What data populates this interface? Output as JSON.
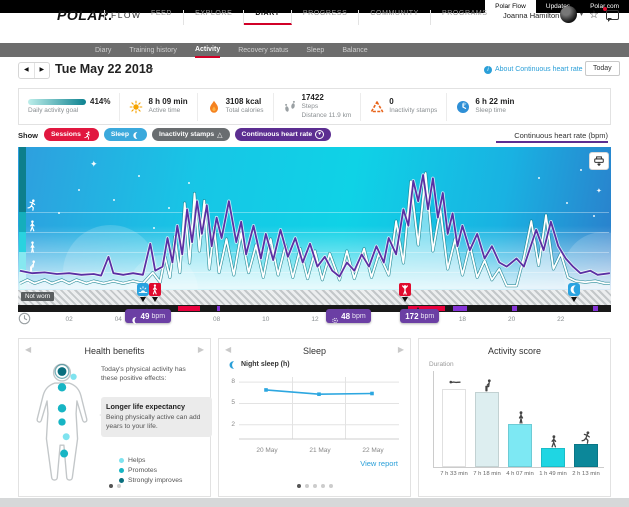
{
  "topbar": {
    "tabs": [
      {
        "label": "Polar Flow"
      },
      {
        "label": "Updates"
      },
      {
        "label": "Polar.com"
      }
    ]
  },
  "header": {
    "logo": "POLAR.",
    "flow": "FLOW",
    "nav": [
      {
        "label": "FEED"
      },
      {
        "label": "EXPLORE"
      },
      {
        "label": "DIARY"
      },
      {
        "label": "PROGRESS"
      },
      {
        "label": "COMMUNITY"
      },
      {
        "label": "PROGRAMS"
      }
    ],
    "user": {
      "name": "Joanna Hamilton"
    }
  },
  "subnav": {
    "items": [
      {
        "label": "Diary"
      },
      {
        "label": "Training history"
      },
      {
        "label": "Activity"
      },
      {
        "label": "Recovery status"
      },
      {
        "label": "Sleep"
      },
      {
        "label": "Balance"
      }
    ]
  },
  "daterow": {
    "date": "Tue May 22 2018",
    "about": "About Continuous heart rate",
    "today": "Today"
  },
  "stats": {
    "goal": {
      "value": "414%",
      "label": "Daily activity goal"
    },
    "active_time": {
      "value": "8 h 09 min",
      "label": "Active time"
    },
    "calories": {
      "value": "3108 kcal",
      "label": "Total calories"
    },
    "steps": {
      "value": "17422",
      "label": "Steps",
      "distance": "Distance 11.9 km"
    },
    "inactivity": {
      "value": "0",
      "label": "Inactivity stamps"
    },
    "sleep": {
      "value": "6 h 22 min",
      "label": "Sleep time"
    }
  },
  "filters": {
    "show_label": "Show",
    "chips": [
      {
        "label": "Sessions"
      },
      {
        "label": "Sleep"
      },
      {
        "label": "Inactivity stamps"
      },
      {
        "label": "Continuous heart rate"
      }
    ],
    "axis_right": "Continuous heart rate (bpm)"
  },
  "chart": {
    "not_worn": "Not worn",
    "ticks": [
      "02",
      "04",
      "06",
      "08",
      "10",
      "12",
      "14",
      "16",
      "18",
      "20",
      "22"
    ],
    "tooltips": [
      {
        "icon": "moon",
        "value": "49",
        "unit": "bpm",
        "hour": 5.2,
        "width": 46
      },
      {
        "icon": "target",
        "value": "48",
        "unit": "bpm",
        "hour": 13.35,
        "width": 44
      },
      {
        "icon": "",
        "value": "172",
        "unit": "bpm",
        "hour": 16.2,
        "width": 36
      }
    ]
  },
  "cards": {
    "health": {
      "title": "Health benefits",
      "intro": "Today's physical activity has these positive effects:",
      "highlight_title": "Longer life expectancy",
      "highlight_body": "Being physically active can add years to your life.",
      "legend": [
        {
          "label": "Helps",
          "color": "#7fe3ef"
        },
        {
          "label": "Promotes",
          "color": "#17b5c4"
        },
        {
          "label": "Strongly improves",
          "color": "#0a6f7e"
        }
      ]
    },
    "sleep": {
      "title": "Sleep",
      "series_label": "Night sleep (h)",
      "link": "View report"
    },
    "score": {
      "title": "Activity score",
      "ylabel": "Duration"
    }
  },
  "chart_data": [
    {
      "id": "continuous_heart_rate_day",
      "type": "line",
      "title": "Continuous heart rate (bpm)",
      "x_unit": "hour_of_day",
      "x_range": [
        0,
        24
      ],
      "x_ticks": [
        "02",
        "04",
        "06",
        "08",
        "10",
        "12",
        "14",
        "16",
        "18",
        "20",
        "22"
      ],
      "annotations": {
        "sleep_min_bpm": 49,
        "day_min_bpm": 48,
        "session_max_bpm": 172,
        "not_worn_label": "Not worn"
      },
      "series": [
        {
          "name": "heart_rate_bpm",
          "color": "#5b2fa3",
          "points": [
            [
              0,
              55
            ],
            [
              0.5,
              52
            ],
            [
              1,
              53
            ],
            [
              1.5,
              51
            ],
            [
              2,
              52
            ],
            [
              2.5,
              50
            ],
            [
              3,
              51
            ],
            [
              3.3,
              49
            ],
            [
              3.6,
              72
            ],
            [
              3.8,
              52
            ],
            [
              4.2,
              50
            ],
            [
              4.6,
              52
            ],
            [
              5,
              50
            ],
            [
              5.3,
              88
            ],
            [
              5.5,
              55
            ],
            [
              5.8,
              60
            ],
            [
              6,
              95
            ],
            [
              6.2,
              65
            ],
            [
              6.4,
              110
            ],
            [
              6.6,
              75
            ],
            [
              6.8,
              130
            ],
            [
              7,
              90
            ],
            [
              7.2,
              140
            ],
            [
              7.4,
              100
            ],
            [
              7.6,
              135
            ],
            [
              7.8,
              85
            ],
            [
              8,
              120
            ],
            [
              8.2,
              95
            ],
            [
              8.5,
              140
            ],
            [
              8.8,
              90
            ],
            [
              9,
              115
            ],
            [
              9.2,
              75
            ],
            [
              9.5,
              110
            ],
            [
              9.8,
              70
            ],
            [
              10,
              100
            ],
            [
              10.3,
              68
            ],
            [
              10.6,
              105
            ],
            [
              10.9,
              72
            ],
            [
              11.2,
              95
            ],
            [
              11.5,
              65
            ],
            [
              11.8,
              88
            ],
            [
              12.1,
              60
            ],
            [
              12.4,
              72
            ],
            [
              12.7,
              55
            ],
            [
              13,
              48
            ],
            [
              13.3,
              65
            ],
            [
              13.6,
              55
            ],
            [
              13.9,
              75
            ],
            [
              14.2,
              60
            ],
            [
              14.5,
              85
            ],
            [
              14.8,
              65
            ],
            [
              15,
              95
            ],
            [
              15.3,
              75
            ],
            [
              15.6,
              130
            ],
            [
              15.8,
              110
            ],
            [
              16,
              165
            ],
            [
              16.2,
              140
            ],
            [
              16.4,
              172
            ],
            [
              16.6,
              130
            ],
            [
              16.8,
              168
            ],
            [
              17,
              120
            ],
            [
              17.2,
              150
            ],
            [
              17.4,
              100
            ],
            [
              17.6,
              125
            ],
            [
              17.8,
              85
            ],
            [
              18,
              110
            ],
            [
              18.3,
              80
            ],
            [
              18.6,
              100
            ],
            [
              18.9,
              70
            ],
            [
              19.2,
              85
            ],
            [
              19.5,
              65
            ],
            [
              19.8,
              60
            ],
            [
              20.2,
              70
            ],
            [
              20.5,
              60
            ],
            [
              21,
              105
            ],
            [
              21.3,
              80
            ],
            [
              21.6,
              115
            ],
            [
              21.9,
              85
            ],
            [
              22.2,
              70
            ],
            [
              22.5,
              60
            ],
            [
              22.8,
              52
            ],
            [
              23.2,
              55
            ],
            [
              23.5,
              50
            ],
            [
              24,
              52
            ]
          ]
        },
        {
          "name": "activity_level_pct",
          "color": "#ffffff",
          "points": [
            [
              0,
              3
            ],
            [
              0.3,
              6
            ],
            [
              0.6,
              3
            ],
            [
              1,
              6
            ],
            [
              1.3,
              3
            ],
            [
              1.7,
              6
            ],
            [
              2,
              3
            ],
            [
              2.3,
              6
            ],
            [
              2.7,
              3
            ],
            [
              3,
              5
            ],
            [
              3.4,
              3
            ],
            [
              3.8,
              5
            ],
            [
              4.2,
              3
            ],
            [
              4.6,
              5
            ],
            [
              5,
              3
            ],
            [
              5.4,
              12
            ],
            [
              5.7,
              4
            ],
            [
              5.9,
              25
            ],
            [
              6.1,
              8
            ],
            [
              6.3,
              42
            ],
            [
              6.5,
              12
            ],
            [
              6.7,
              70
            ],
            [
              6.9,
              20
            ],
            [
              7.1,
              78
            ],
            [
              7.3,
              30
            ],
            [
              7.5,
              72
            ],
            [
              7.7,
              15
            ],
            [
              7.9,
              50
            ],
            [
              8.1,
              12
            ],
            [
              8.4,
              40
            ],
            [
              8.7,
              10
            ],
            [
              9,
              45
            ],
            [
              9.3,
              12
            ],
            [
              9.6,
              35
            ],
            [
              9.9,
              8
            ],
            [
              10.2,
              40
            ],
            [
              10.5,
              10
            ],
            [
              10.8,
              35
            ],
            [
              11.1,
              8
            ],
            [
              11.4,
              32
            ],
            [
              11.7,
              7
            ],
            [
              12,
              30
            ],
            [
              12.3,
              6
            ],
            [
              12.6,
              28
            ],
            [
              13,
              6
            ],
            [
              13.3,
              30
            ],
            [
              13.6,
              7
            ],
            [
              14,
              32
            ],
            [
              14.3,
              8
            ],
            [
              14.6,
              28
            ],
            [
              15,
              10
            ],
            [
              15.3,
              55
            ],
            [
              15.6,
              20
            ],
            [
              15.9,
              88
            ],
            [
              16.2,
              35
            ],
            [
              16.5,
              95
            ],
            [
              16.8,
              30
            ],
            [
              17.1,
              65
            ],
            [
              17.4,
              15
            ],
            [
              17.7,
              40
            ],
            [
              18,
              10
            ],
            [
              18.3,
              35
            ],
            [
              18.6,
              8
            ],
            [
              18.9,
              22
            ],
            [
              19.2,
              6
            ],
            [
              19.5,
              15
            ],
            [
              19.8,
              1
            ],
            [
              20.2,
              1
            ],
            [
              20.5,
              25
            ],
            [
              20.8,
              55
            ],
            [
              21.1,
              18
            ],
            [
              21.4,
              60
            ],
            [
              21.7,
              15
            ],
            [
              22,
              28
            ],
            [
              22.3,
              8
            ],
            [
              22.6,
              5
            ],
            [
              23,
              4
            ],
            [
              23.4,
              5
            ],
            [
              23.8,
              3
            ],
            [
              24,
              3
            ]
          ]
        }
      ],
      "session_segments_h": [
        [
          6.43,
          7.32
        ],
        [
          15.8,
          17.3
        ]
      ],
      "hr_segments_h": [
        [
          8.0,
          8.15
        ],
        [
          17.6,
          18.2
        ],
        [
          20.0,
          20.2
        ],
        [
          23.3,
          23.5
        ]
      ],
      "markers": [
        {
          "icon": "sunrise",
          "hour": 5.0
        },
        {
          "icon": "walk",
          "hour": 5.5
        },
        {
          "icon": "strength",
          "hour": 15.65
        },
        {
          "icon": "moon",
          "hour": 22.55
        }
      ]
    },
    {
      "id": "night_sleep",
      "type": "line",
      "title": "Sleep",
      "ylabel": "Night sleep (h)",
      "yticks": [
        "8",
        "5",
        "2"
      ],
      "ylim": [
        0,
        9
      ],
      "categories": [
        "20 May",
        "21 May",
        "22 May"
      ],
      "values": [
        6.9,
        6.3,
        6.4
      ]
    },
    {
      "id": "activity_score",
      "type": "bar",
      "title": "Activity score",
      "ylabel": "Duration",
      "categories": [
        "lying",
        "sitting",
        "standing",
        "walking",
        "running"
      ],
      "labels": [
        "7 h 33 min",
        "7 h 18 min",
        "4 h 07 min",
        "1 h 49 min",
        "2 h 13 min"
      ],
      "values_min": [
        453,
        438,
        247,
        109,
        133
      ],
      "colors": [
        "#ffffff",
        "#ddeef0",
        "#7de8f3",
        "#1fd6e3",
        "#0c8799"
      ]
    }
  ]
}
